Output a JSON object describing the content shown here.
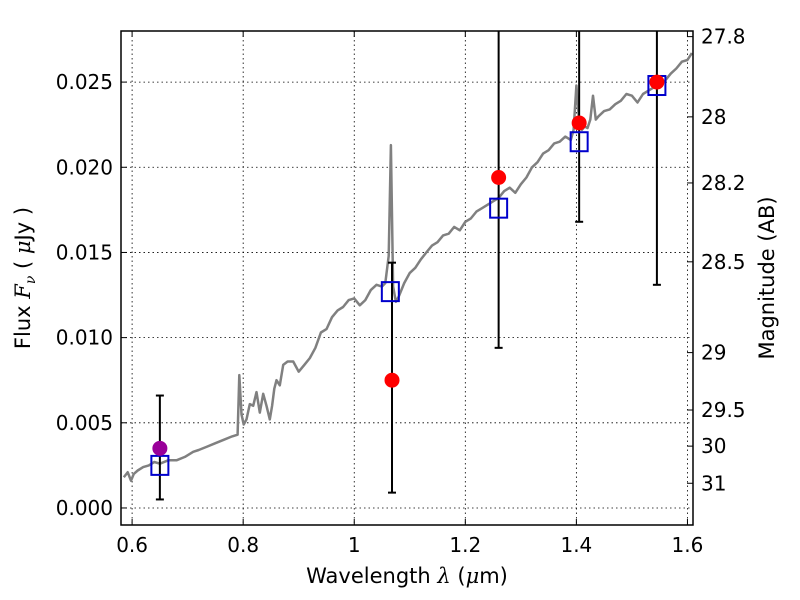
{
  "chart_data": {
    "type": "scatter",
    "xlabel": "Wavelength  λ (μm)",
    "ylabel": "Flux  F_ν  ( μJy )",
    "ylabel_right": "Magnitude (AB)",
    "xlim": [
      0.58,
      1.61
    ],
    "ylim": [
      -0.001,
      0.028
    ],
    "grid": true,
    "x_ticks": [
      0.6,
      0.8,
      1.0,
      1.2,
      1.4,
      1.6
    ],
    "x_tick_labels": [
      "0.6",
      "0.8",
      "1",
      "1.2",
      "1.4",
      "1.6"
    ],
    "y_ticks": [
      0.0,
      0.005,
      0.01,
      0.015,
      0.02,
      0.025
    ],
    "y_tick_labels": [
      "0.000",
      "0.005",
      "0.010",
      "0.015",
      "0.020",
      "0.025"
    ],
    "right_ticks": [
      {
        "label": "27.8",
        "flux": 0.02767
      },
      {
        "label": "28",
        "flux": 0.02296
      },
      {
        "label": "28.2",
        "flux": 0.01908
      },
      {
        "label": "28.5",
        "flux": 0.01445
      },
      {
        "label": "29",
        "flux": 0.00912
      },
      {
        "label": "29.5",
        "flux": 0.00575
      },
      {
        "label": "30",
        "flux": 0.00363
      },
      {
        "label": "31",
        "flux": 0.00145
      }
    ],
    "model_spectrum": {
      "color": "#808080",
      "x": [
        0.585,
        0.592,
        0.598,
        0.603,
        0.61,
        0.62,
        0.63,
        0.64,
        0.65,
        0.665,
        0.68,
        0.695,
        0.71,
        0.72,
        0.735,
        0.75,
        0.765,
        0.78,
        0.79,
        0.793,
        0.797,
        0.801,
        0.806,
        0.812,
        0.818,
        0.824,
        0.83,
        0.836,
        0.842,
        0.848,
        0.852,
        0.856,
        0.86,
        0.866,
        0.872,
        0.88,
        0.89,
        0.9,
        0.91,
        0.92,
        0.93,
        0.94,
        0.95,
        0.96,
        0.97,
        0.98,
        0.99,
        1.0,
        1.01,
        1.02,
        1.03,
        1.04,
        1.05,
        1.056,
        1.062,
        1.066,
        1.07,
        1.075,
        1.08,
        1.09,
        1.1,
        1.11,
        1.12,
        1.13,
        1.14,
        1.15,
        1.16,
        1.17,
        1.18,
        1.19,
        1.2,
        1.21,
        1.22,
        1.23,
        1.24,
        1.25,
        1.26,
        1.27,
        1.28,
        1.29,
        1.3,
        1.31,
        1.32,
        1.33,
        1.34,
        1.35,
        1.36,
        1.37,
        1.38,
        1.39,
        1.395,
        1.4,
        1.405,
        1.41,
        1.415,
        1.42,
        1.425,
        1.43,
        1.435,
        1.44,
        1.45,
        1.46,
        1.47,
        1.48,
        1.49,
        1.5,
        1.51,
        1.52,
        1.53,
        1.54,
        1.55,
        1.56,
        1.57,
        1.58,
        1.59,
        1.6,
        1.608
      ],
      "y": [
        0.0018,
        0.0021,
        0.0016,
        0.002,
        0.0022,
        0.0024,
        0.0025,
        0.0027,
        0.0026,
        0.0028,
        0.0028,
        0.003,
        0.0033,
        0.0034,
        0.0036,
        0.0038,
        0.004,
        0.0042,
        0.0043,
        0.0078,
        0.0055,
        0.0049,
        0.0052,
        0.0061,
        0.006,
        0.0068,
        0.0056,
        0.0067,
        0.006,
        0.0052,
        0.006,
        0.007,
        0.0075,
        0.0072,
        0.0084,
        0.0086,
        0.0086,
        0.008,
        0.0084,
        0.0088,
        0.0094,
        0.0103,
        0.0105,
        0.0112,
        0.0116,
        0.0118,
        0.0122,
        0.0123,
        0.0119,
        0.0122,
        0.0128,
        0.0131,
        0.013,
        0.0132,
        0.0148,
        0.0213,
        0.013,
        0.0121,
        0.0124,
        0.0132,
        0.0138,
        0.0141,
        0.0146,
        0.015,
        0.0154,
        0.0156,
        0.016,
        0.0161,
        0.0165,
        0.0163,
        0.0168,
        0.017,
        0.0174,
        0.0176,
        0.0178,
        0.018,
        0.0182,
        0.0186,
        0.0188,
        0.0185,
        0.019,
        0.0194,
        0.02,
        0.0203,
        0.0208,
        0.021,
        0.0214,
        0.0215,
        0.0218,
        0.0216,
        0.0222,
        0.0248,
        0.0226,
        0.0222,
        0.0224,
        0.0223,
        0.0228,
        0.0242,
        0.0228,
        0.023,
        0.0233,
        0.0234,
        0.0237,
        0.0239,
        0.0243,
        0.0242,
        0.0238,
        0.0243,
        0.0245,
        0.0247,
        0.0249,
        0.0251,
        0.0255,
        0.0258,
        0.0262,
        0.0263,
        0.0267
      ]
    },
    "model_band_fluxes": {
      "marker": "open-square",
      "color": "#0000cc",
      "x": [
        0.65,
        1.065,
        1.26,
        1.405,
        1.545
      ],
      "y": [
        0.0025,
        0.0127,
        0.0176,
        0.0215,
        0.0248
      ]
    },
    "observed_fluxes": [
      {
        "x": 0.65,
        "y": 0.0035,
        "yerr_low": 0.0005,
        "yerr_high": 0.0066,
        "color": "#990099"
      },
      {
        "x": 1.068,
        "y": 0.0075,
        "yerr_low": 0.0009,
        "yerr_high": 0.0144,
        "color": "#ff0000"
      },
      {
        "x": 1.26,
        "y": 0.0194,
        "yerr_low": 0.0094,
        "yerr_high": 0.03,
        "color": "#ff0000"
      },
      {
        "x": 1.405,
        "y": 0.0226,
        "yerr_low": 0.0168,
        "yerr_high": 0.03,
        "color": "#ff0000"
      },
      {
        "x": 1.545,
        "y": 0.025,
        "yerr_low": 0.0131,
        "yerr_high": 0.03,
        "color": "#ff0000"
      }
    ]
  }
}
